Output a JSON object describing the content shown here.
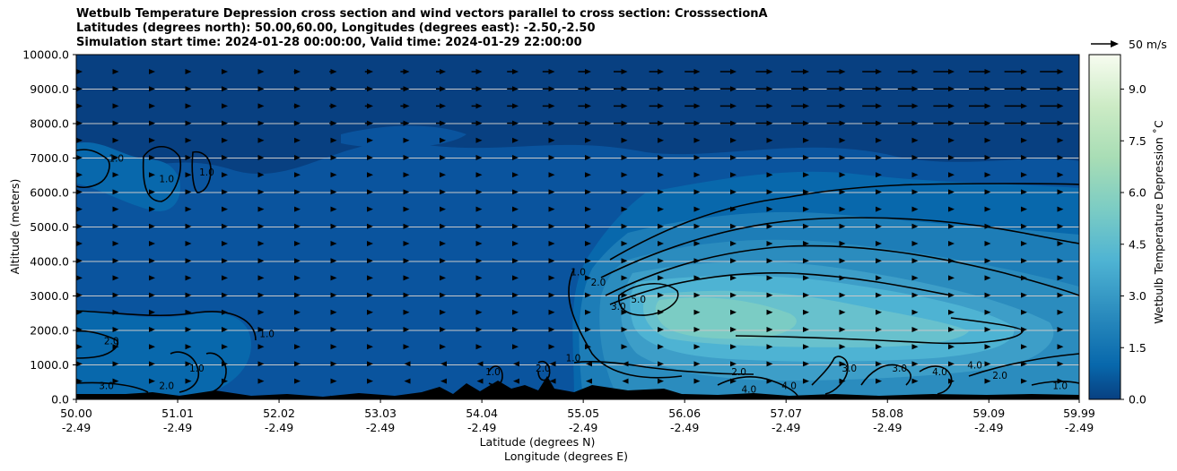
{
  "title_lines": [
    "Wetbulb Temperature Depression cross section and wind vectors parallel to cross section: CrosssectionA",
    "Latitudes (degrees north): 50.00,60.00, Longitudes (degrees east): -2.50,-2.50",
    "Simulation start time: 2024-01-28 00:00:00, Valid time: 2024-01-29 22:00:00"
  ],
  "chart_data": {
    "type": "heatmap",
    "ylabel": "Altitude (meters)",
    "xlabel_lat": "Latitude (degrees N)",
    "xlabel_lon": "Longitude (degrees E)",
    "colorbar_label": "Wetbulb Temperature Depression ˚C",
    "quiver_key": "50 m/s",
    "ylim": [
      0,
      10000
    ],
    "yticks": [
      "0.0",
      "1000.0",
      "2000.0",
      "3000.0",
      "4000.0",
      "5000.0",
      "6000.0",
      "7000.0",
      "8000.0",
      "9000.0",
      "10000.0"
    ],
    "yticks_values": [
      0,
      1000,
      2000,
      3000,
      4000,
      5000,
      6000,
      7000,
      8000,
      9000,
      10000
    ],
    "xticks_lat": [
      "50.00",
      "51.01",
      "52.02",
      "53.03",
      "54.04",
      "55.05",
      "56.06",
      "57.07",
      "58.08",
      "59.09",
      "59.99"
    ],
    "xticks_lon": [
      "-2.49",
      "-2.49",
      "-2.49",
      "-2.49",
      "-2.49",
      "-2.49",
      "-2.49",
      "-2.49",
      "-2.49",
      "-2.49",
      "-2.49"
    ],
    "xlim": [
      50.0,
      59.99
    ],
    "colorbar_ticks": [
      "0.0",
      "1.5",
      "3.0",
      "4.5",
      "6.0",
      "7.5",
      "9.0"
    ],
    "colorbar_ticks_values": [
      0.0,
      1.5,
      3.0,
      4.5,
      6.0,
      7.5,
      9.0
    ],
    "colorbar_range": [
      0,
      10
    ],
    "colormap": [
      "#084081",
      "#0a549e",
      "#0868ac",
      "#1d7db7",
      "#2b8cbe",
      "#3d9ec8",
      "#4eb3d3",
      "#68c1cd",
      "#7bccc4",
      "#96d7c5",
      "#a8ddb5",
      "#c4e8c2",
      "#ccebc5",
      "#dcf1d9",
      "#e0f3db",
      "#f0f9ec",
      "#f7fcf0"
    ],
    "contour_labels": [
      {
        "text": "1.0",
        "lat": 50.4,
        "alt": 6900
      },
      {
        "text": "1.0",
        "lat": 50.9,
        "alt": 6300
      },
      {
        "text": "1.0",
        "lat": 51.3,
        "alt": 6500
      },
      {
        "text": "2.0",
        "lat": 50.35,
        "alt": 1600
      },
      {
        "text": "1.0",
        "lat": 51.9,
        "alt": 1800
      },
      {
        "text": "3.0",
        "lat": 50.3,
        "alt": 300
      },
      {
        "text": "2.0",
        "lat": 50.9,
        "alt": 300
      },
      {
        "text": "1.0",
        "lat": 51.2,
        "alt": 800
      },
      {
        "text": "1.0",
        "lat": 54.15,
        "alt": 700
      },
      {
        "text": "2.0",
        "lat": 54.65,
        "alt": 800
      },
      {
        "text": "1.0",
        "lat": 55.0,
        "alt": 3600
      },
      {
        "text": "2.0",
        "lat": 55.2,
        "alt": 3300
      },
      {
        "text": "3.0",
        "lat": 55.4,
        "alt": 2600
      },
      {
        "text": "5.0",
        "lat": 55.6,
        "alt": 2800
      },
      {
        "text": "1.0",
        "lat": 54.95,
        "alt": 1100
      },
      {
        "text": "2.0",
        "lat": 56.6,
        "alt": 700
      },
      {
        "text": "4.0",
        "lat": 56.7,
        "alt": 200
      },
      {
        "text": "4.0",
        "lat": 57.1,
        "alt": 300
      },
      {
        "text": "3.0",
        "lat": 57.7,
        "alt": 800
      },
      {
        "text": "3.0",
        "lat": 58.2,
        "alt": 800
      },
      {
        "text": "4.0",
        "lat": 58.6,
        "alt": 700
      },
      {
        "text": "4.0",
        "lat": 58.95,
        "alt": 900
      },
      {
        "text": "2.0",
        "lat": 59.2,
        "alt": 600
      },
      {
        "text": "1.0",
        "lat": 59.8,
        "alt": 300
      }
    ]
  }
}
